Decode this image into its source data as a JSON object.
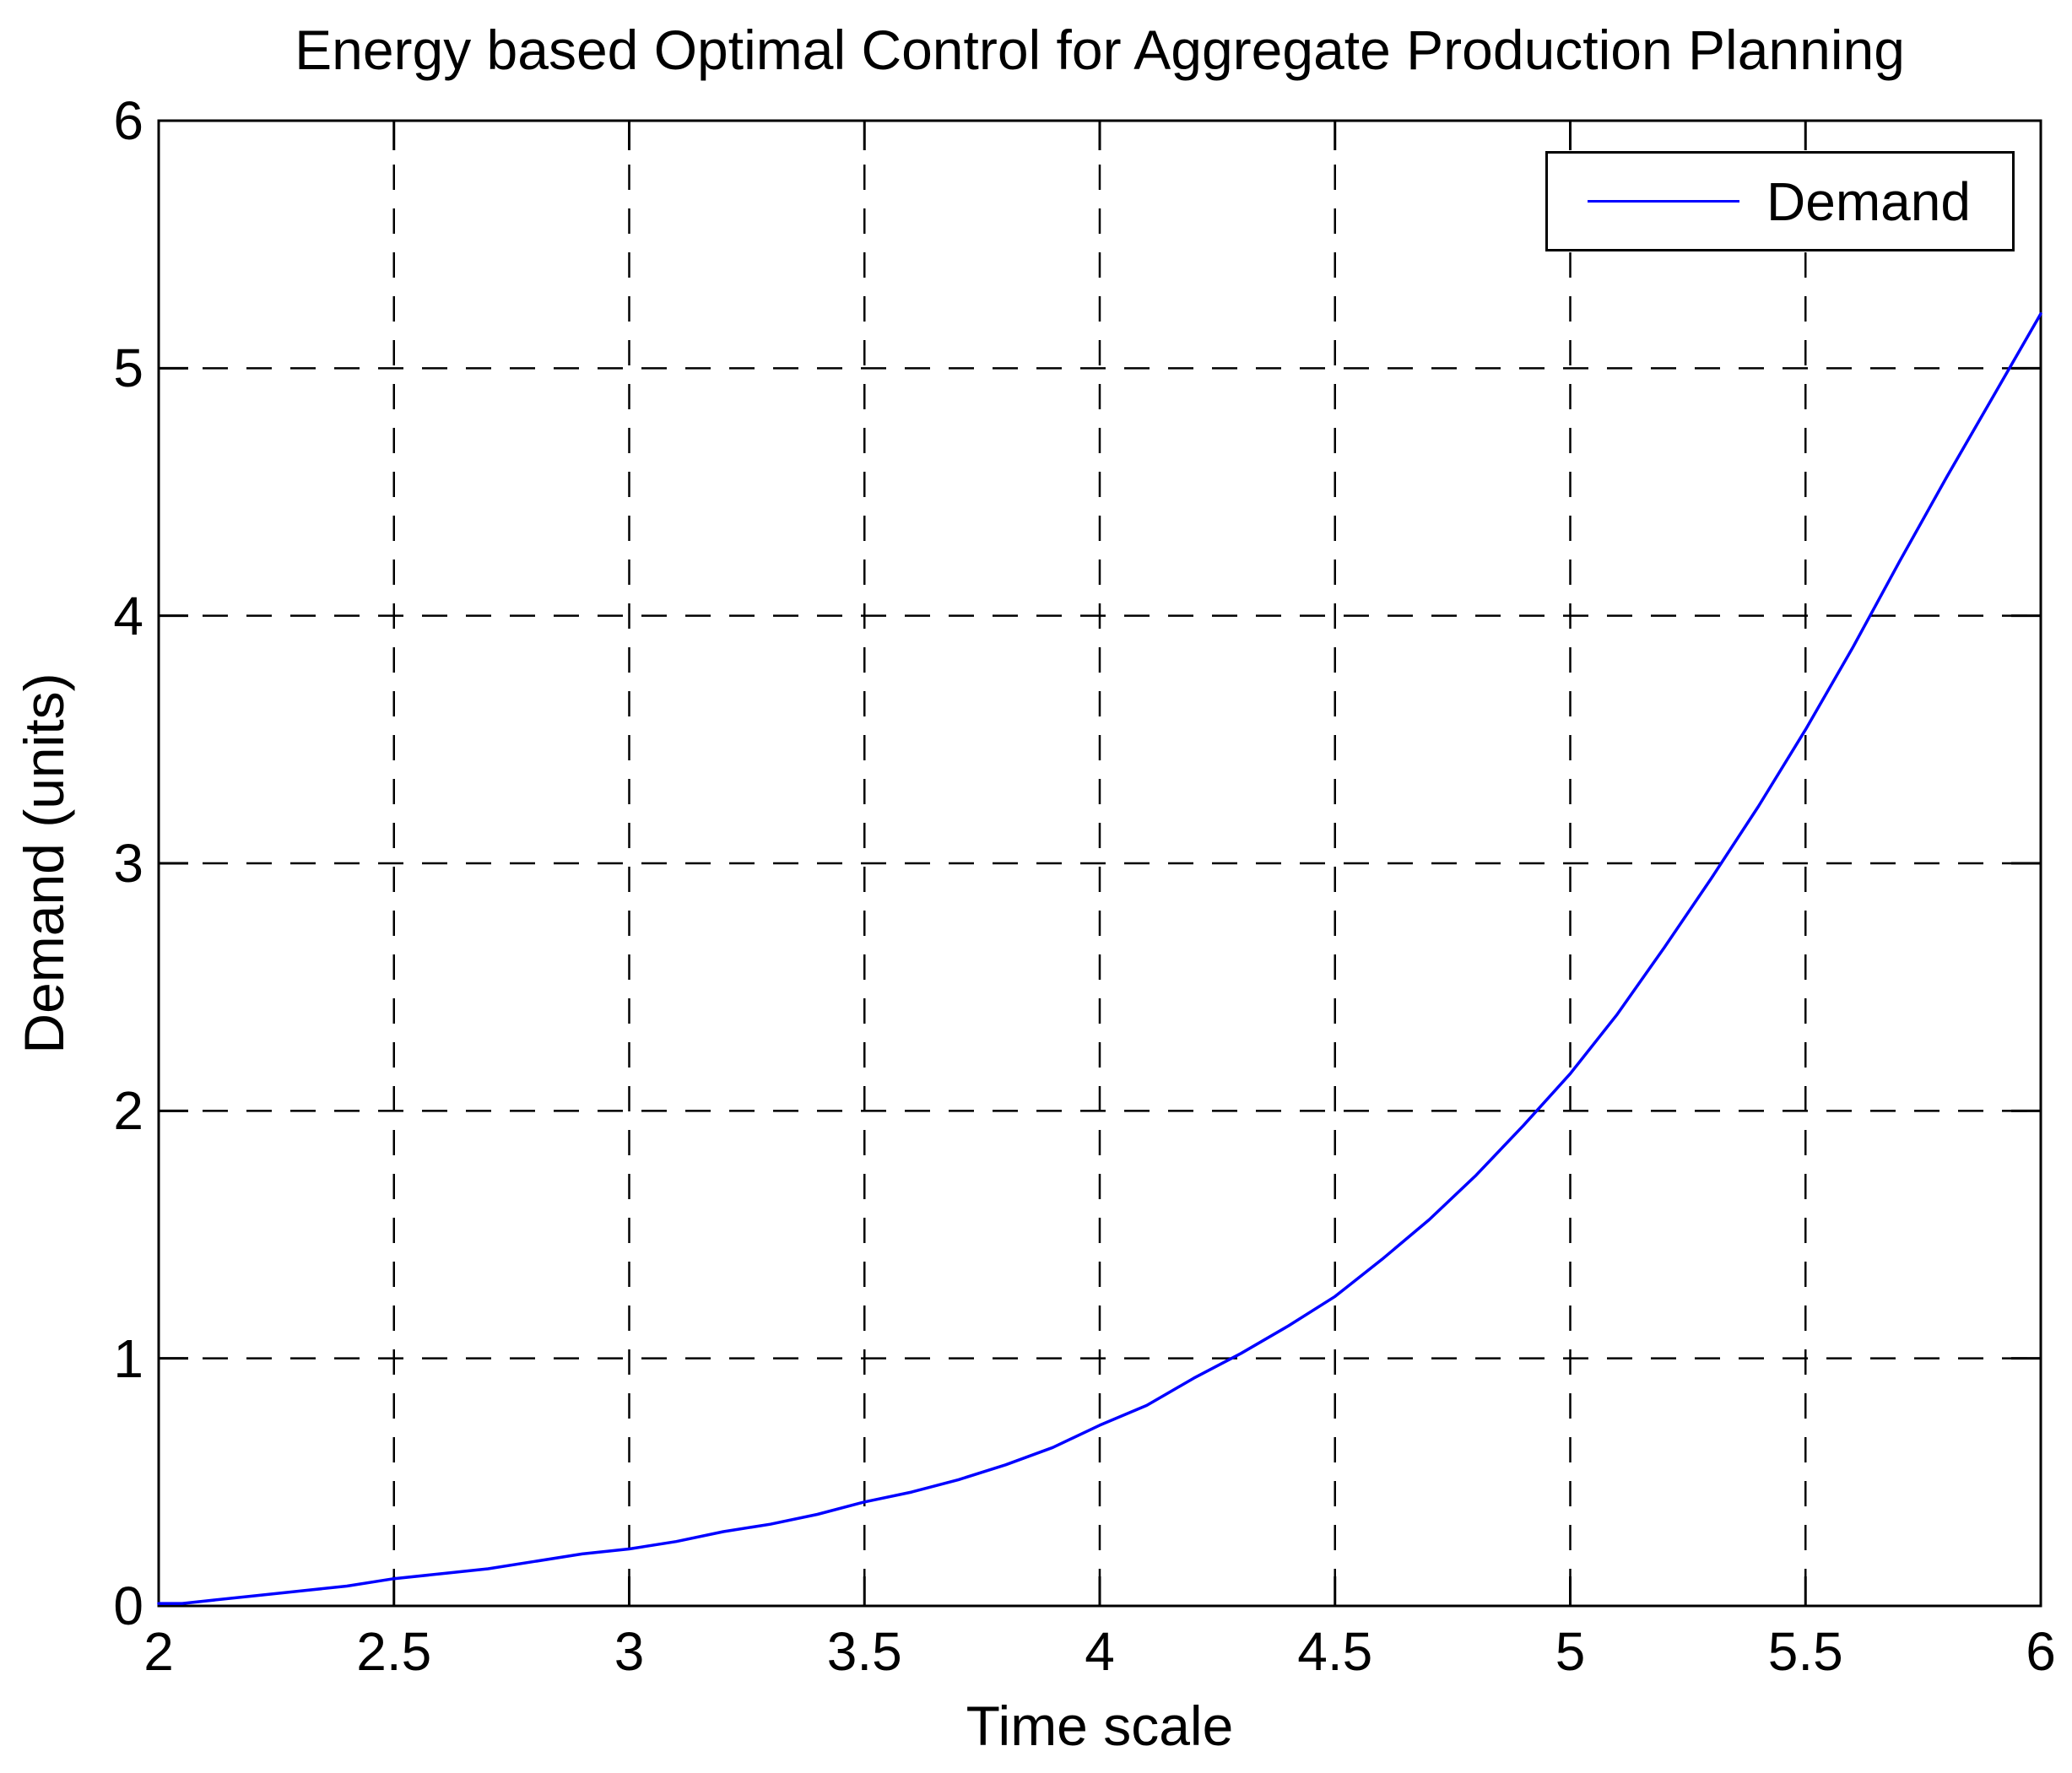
{
  "chart_data": {
    "type": "line",
    "title": "Energy based Optimal Control for Aggregate Production Planning",
    "xlabel": "Time scale",
    "ylabel": "Demand (units)",
    "xlim": [
      2,
      6
    ],
    "ylim": [
      0,
      6
    ],
    "xticks": {
      "values": [
        2,
        2.5,
        3,
        3.5,
        4,
        4.5,
        5,
        5.5,
        6
      ],
      "labels": [
        "2",
        "2.5",
        "3",
        "3.5",
        "4",
        "4.5",
        "5",
        "5.5",
        "6"
      ]
    },
    "yticks": {
      "values": [
        0,
        1,
        2,
        3,
        4,
        5,
        6
      ],
      "labels": [
        "0",
        "1",
        "2",
        "3",
        "4",
        "5",
        "6"
      ]
    },
    "grid": true,
    "grid_style": "dashed",
    "legend": {
      "position": "top-right",
      "entries": [
        {
          "label": "Demand",
          "color": "#0000FF"
        }
      ]
    },
    "series": [
      {
        "name": "Demand",
        "color": "#0000FF",
        "x": [
          2.0,
          2.05,
          2.1,
          2.2,
          2.3,
          2.4,
          2.5,
          2.6,
          2.7,
          2.8,
          2.9,
          3.0,
          3.1,
          3.2,
          3.3,
          3.4,
          3.5,
          3.6,
          3.7,
          3.8,
          3.9,
          4.0,
          4.1,
          4.2,
          4.3,
          4.4,
          4.5,
          4.6,
          4.7,
          4.8,
          4.9,
          5.0,
          5.1,
          5.2,
          5.3,
          5.4,
          5.5,
          5.6,
          5.7,
          5.8,
          5.9,
          6.0
        ],
        "y": [
          0.01,
          0.01,
          0.02,
          0.04,
          0.06,
          0.08,
          0.11,
          0.13,
          0.15,
          0.18,
          0.21,
          0.23,
          0.26,
          0.3,
          0.33,
          0.37,
          0.42,
          0.46,
          0.51,
          0.57,
          0.64,
          0.73,
          0.81,
          0.92,
          1.02,
          1.13,
          1.25,
          1.4,
          1.56,
          1.74,
          1.94,
          2.15,
          2.39,
          2.66,
          2.94,
          3.23,
          3.54,
          3.87,
          4.22,
          4.56,
          4.89,
          5.22
        ]
      }
    ]
  },
  "colors": {
    "curve": "#0000FF",
    "axis": "#000000",
    "grid": "#000000",
    "background": "#FFFFFF",
    "text": "#000000"
  }
}
